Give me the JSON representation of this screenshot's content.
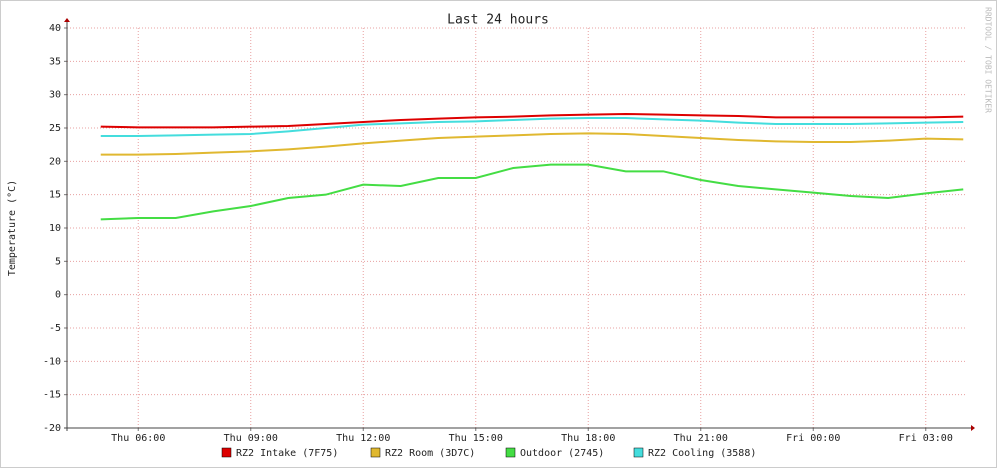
{
  "chart_data": {
    "type": "line",
    "title": "Last 24 hours",
    "y_label": "Temperature (°C)",
    "side_text": "RRDTOOL / TOBI OETIKER",
    "x": [
      5,
      6,
      7,
      8,
      9,
      10,
      11,
      12,
      13,
      14,
      15,
      16,
      17,
      18,
      19,
      20,
      21,
      22,
      23,
      24,
      25,
      26,
      27,
      28
    ],
    "xlim": [
      4.1,
      28.1
    ],
    "xticks": [
      {
        "value": 6,
        "label": "Thu 06:00"
      },
      {
        "value": 9,
        "label": "Thu 09:00"
      },
      {
        "value": 12,
        "label": "Thu 12:00"
      },
      {
        "value": 15,
        "label": "Thu 15:00"
      },
      {
        "value": 18,
        "label": "Thu 18:00"
      },
      {
        "value": 21,
        "label": "Thu 21:00"
      },
      {
        "value": 24,
        "label": "Fri 00:00"
      },
      {
        "value": 27,
        "label": "Fri 03:00"
      }
    ],
    "ylim": [
      -20,
      40
    ],
    "yticks": [
      -20,
      -15,
      -10,
      -5,
      0,
      5,
      10,
      15,
      20,
      25,
      30,
      35,
      40
    ],
    "grid": true,
    "series": [
      {
        "name": "RZ2 Intake (7F75)",
        "color": "#dd0000",
        "values": [
          25.2,
          25.1,
          25.1,
          25.1,
          25.2,
          25.3,
          25.6,
          25.9,
          26.2,
          26.4,
          26.6,
          26.7,
          26.9,
          27.0,
          27.1,
          27.0,
          26.9,
          26.8,
          26.6,
          26.6,
          26.6,
          26.6,
          26.6,
          26.7
        ]
      },
      {
        "name": "RZ2 Room (3D7C)",
        "color": "#e0b830",
        "values": [
          21.0,
          21.0,
          21.1,
          21.3,
          21.5,
          21.8,
          22.2,
          22.7,
          23.1,
          23.5,
          23.7,
          23.9,
          24.1,
          24.2,
          24.1,
          23.8,
          23.5,
          23.2,
          23.0,
          22.9,
          22.9,
          23.1,
          23.4,
          23.3
        ]
      },
      {
        "name": "Outdoor (2745)",
        "color": "#44dd44",
        "values": [
          11.3,
          11.5,
          11.5,
          12.5,
          13.3,
          14.5,
          15.0,
          16.5,
          16.3,
          17.5,
          17.5,
          19.0,
          19.5,
          19.5,
          18.5,
          18.5,
          17.2,
          16.3,
          15.8,
          15.3,
          14.8,
          14.5,
          15.2,
          15.8
        ]
      },
      {
        "name": "RZ2 Cooling (3588)",
        "color": "#44dddd",
        "values": [
          23.8,
          23.8,
          23.9,
          24.0,
          24.1,
          24.5,
          25.0,
          25.5,
          25.7,
          25.9,
          26.0,
          26.2,
          26.4,
          26.5,
          26.5,
          26.3,
          26.1,
          25.8,
          25.6,
          25.6,
          25.6,
          25.7,
          25.8,
          25.9
        ]
      }
    ]
  }
}
